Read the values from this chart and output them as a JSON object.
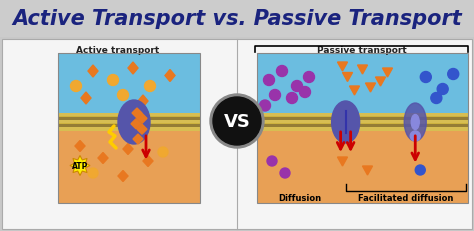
{
  "title": "Active Transport vs. Passive Transport",
  "title_color": "#1a237e",
  "title_bg": "#cccccc",
  "bg_color": "#c8c8c8",
  "panel_bg": "#f5f5f5",
  "left_label": "Active transport",
  "right_label": "Passive transport",
  "vs_text": "VS",
  "vs_bg": "#111111",
  "vs_text_color": "#ffffff",
  "diffusion_label": "Diffusion",
  "facilitated_label": "Facilitated diffusion",
  "cell_top_color": "#6bbde0",
  "cell_bottom_color": "#e8a055",
  "membrane_color_light": "#d4b840",
  "membrane_color_dark": "#8a7020",
  "arrow_color": "#cc0000",
  "protein_color": "#5555aa",
  "orange_particle": "#e87820",
  "orange_circle": "#f0a830",
  "purple_particle": "#9933aa",
  "blue_particle": "#3355cc",
  "atp_color": "#ffee00",
  "lightning_color": "#ffcc00"
}
